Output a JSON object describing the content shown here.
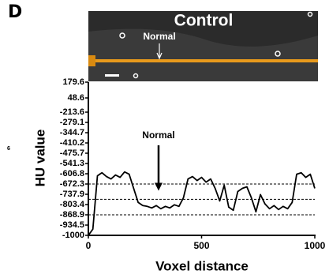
{
  "panel_label": "D",
  "margin_text": "6",
  "image": {
    "title": "Control",
    "annotation": "Normal"
  },
  "chart_data": {
    "type": "line",
    "x_label": "Voxel distance",
    "y_label": "HU value",
    "x": [
      0,
      20,
      40,
      60,
      80,
      100,
      120,
      140,
      160,
      180,
      200,
      220,
      240,
      260,
      280,
      300,
      320,
      340,
      360,
      380,
      400,
      420,
      440,
      460,
      480,
      500,
      520,
      540,
      560,
      580,
      600,
      620,
      640,
      660,
      680,
      700,
      720,
      740,
      760,
      780,
      800,
      820,
      840,
      860,
      880,
      900,
      920,
      940,
      960,
      980,
      1000
    ],
    "series": [
      {
        "name": "Control",
        "color": "#000000",
        "values": [
          -1000,
          -960,
          -620,
          -600,
          -625,
          -640,
          -615,
          -630,
          -595,
          -610,
          -700,
          -790,
          -810,
          -815,
          -825,
          -810,
          -830,
          -815,
          -825,
          -805,
          -815,
          -760,
          -640,
          -625,
          -650,
          -630,
          -660,
          -640,
          -700,
          -780,
          -680,
          -820,
          -840,
          -720,
          -700,
          -690,
          -760,
          -850,
          -740,
          -800,
          -830,
          -810,
          -835,
          -815,
          -830,
          -790,
          -610,
          -600,
          -630,
          -610,
          -700
        ]
      }
    ],
    "xlim": [
      0,
      1000
    ],
    "xticks": [
      0,
      500,
      1000
    ],
    "ylim": [
      -1000,
      179.6
    ],
    "axis_break": [
      -213.6,
      48.6
    ],
    "yticks": [
      179.6,
      48.6,
      -213.6,
      -279.1,
      -344.7,
      -410.2,
      -475.7,
      -541.3,
      -606.8,
      -672.3,
      -737.9,
      -803.4,
      -868.9,
      -934.5,
      -1000
    ],
    "reference_lines": [
      -672.3,
      -770,
      -868.9
    ],
    "annotation": {
      "text": "Normal",
      "x": 310,
      "y": -715
    },
    "grid": false
  }
}
